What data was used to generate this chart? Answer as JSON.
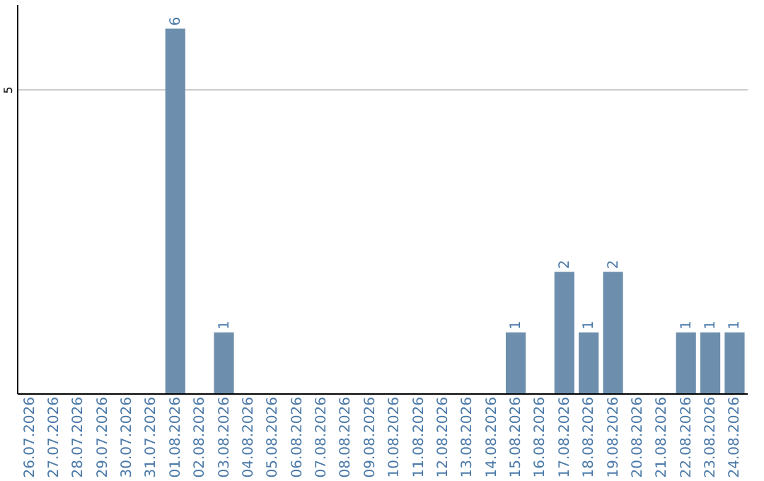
{
  "chart_data": {
    "type": "bar",
    "categories": [
      "26.07.2026",
      "27.07.2026",
      "28.07.2026",
      "29.07.2026",
      "30.07.2026",
      "31.07.2026",
      "01.08.2026",
      "02.08.2026",
      "03.08.2026",
      "04.08.2026",
      "05.08.2026",
      "06.08.2026",
      "07.08.2026",
      "08.08.2026",
      "09.08.2026",
      "10.08.2026",
      "11.08.2026",
      "12.08.2026",
      "13.08.2026",
      "14.08.2026",
      "15.08.2026",
      "16.08.2026",
      "17.08.2026",
      "18.08.2026",
      "19.08.2026",
      "20.08.2026",
      "21.08.2026",
      "22.08.2026",
      "23.08.2026",
      "24.08.2026"
    ],
    "values": [
      0,
      0,
      0,
      0,
      0,
      0,
      6,
      0,
      1,
      0,
      0,
      0,
      0,
      0,
      0,
      0,
      0,
      0,
      0,
      0,
      1,
      0,
      2,
      1,
      2,
      0,
      0,
      1,
      1,
      1
    ],
    "value_labels": [
      null,
      null,
      null,
      null,
      null,
      null,
      "6",
      null,
      "1",
      null,
      null,
      null,
      null,
      null,
      null,
      null,
      null,
      null,
      null,
      null,
      "1",
      null,
      "2",
      "1",
      "2",
      null,
      null,
      "1",
      "1",
      "1"
    ],
    "color": "#6d8fad",
    "ylim": [
      0,
      6.4
    ],
    "yticks": [
      5
    ],
    "grid": "y"
  }
}
